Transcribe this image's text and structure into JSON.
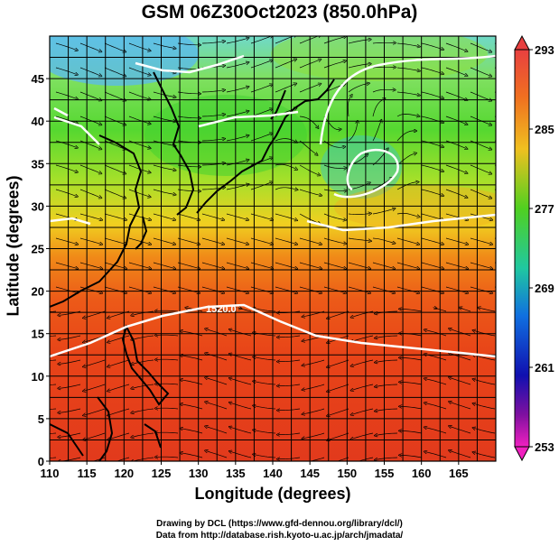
{
  "title": "GSM 06Z30Oct2023 (850.0hPa)",
  "chart_data": {
    "type": "heatmap",
    "title": "GSM 06Z30Oct2023 (850.0hPa)",
    "xlabel": "Longitude (degrees)",
    "ylabel": "Latitude  (degrees)",
    "xlim": [
      110,
      170
    ],
    "ylim": [
      0,
      50
    ],
    "x_ticks": [
      "110",
      "115",
      "120",
      "125",
      "130",
      "135",
      "140",
      "145",
      "150",
      "155",
      "160",
      "165"
    ],
    "y_ticks": [
      "0",
      "5",
      "10",
      "15",
      "20",
      "25",
      "30",
      "35",
      "40",
      "45"
    ],
    "colorbar": {
      "ticks": [
        "293",
        "285",
        "277",
        "269",
        "261",
        "253"
      ],
      "range": [
        253,
        293
      ]
    },
    "contour_labels": [
      "1520.0"
    ],
    "grid": true
  },
  "credits": {
    "line1": "Drawing by DCL (https://www.gfd-dennou.org/library/dcl/)",
    "line2": "Data from http://database.rish.kyoto-u.ac.jp/arch/jmadata/"
  }
}
